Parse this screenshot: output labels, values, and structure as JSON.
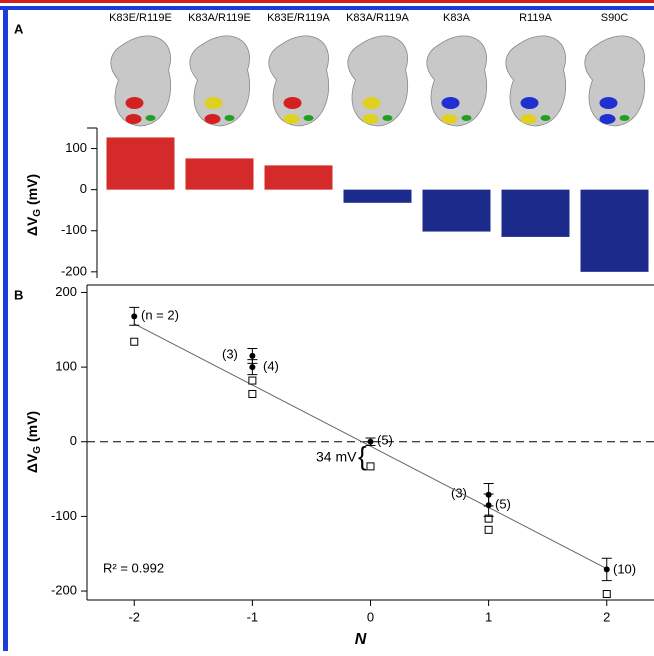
{
  "chart_data": [
    {
      "type": "bar",
      "panel": "A",
      "categories": [
        "K83E/R119E",
        "K83A/R119E",
        "K83E/R119A",
        "K83A/R119A",
        "K83A",
        "R119A",
        "S90C"
      ],
      "values": [
        127,
        76,
        59,
        -32,
        -102,
        -115,
        -200
      ],
      "colors": [
        "#d42a2a",
        "#d42a2a",
        "#d42a2a",
        "#1c2a8c",
        "#1c2a8c",
        "#1c2a8c",
        "#1c2a8c"
      ],
      "ylim": [
        -215,
        150
      ],
      "yticks": [
        100,
        0,
        -100,
        -200
      ],
      "y_label": "ΔV",
      "y_label_sub": "G",
      "y_label_unit": " (mV)"
    },
    {
      "type": "scatter",
      "panel": "B",
      "points": {
        "x": [
          -2,
          -1,
          -1,
          0,
          1,
          1,
          2
        ],
        "values": [
          168,
          115,
          100,
          0,
          -71,
          -85,
          -171
        ],
        "errors": [
          12,
          10,
          10,
          5,
          15,
          15,
          15
        ]
      },
      "open_points": {
        "x": [
          -2,
          -1,
          -1,
          0,
          1,
          1,
          2
        ],
        "values": [
          134,
          82,
          64,
          -33,
          -103,
          -118,
          -204
        ]
      },
      "fit": {
        "x": [
          -2,
          2
        ],
        "values": [
          158,
          -170
        ]
      },
      "xlim": [
        -2.4,
        2.4
      ],
      "ylim": [
        -212,
        210
      ],
      "xticks": [
        -2,
        -1,
        0,
        1,
        2
      ],
      "yticks": [
        200,
        100,
        0,
        -100,
        -200
      ],
      "x_label": "N",
      "y_label": "ΔV",
      "y_label_sub": "G",
      "y_label_unit": " (mV)",
      "annotations": [
        "(n = 2)",
        "(3)",
        "(4)",
        "(5)",
        "(3)",
        "(5)",
        "(10)",
        "34 mV",
        "R² = 0.992"
      ]
    }
  ]
}
